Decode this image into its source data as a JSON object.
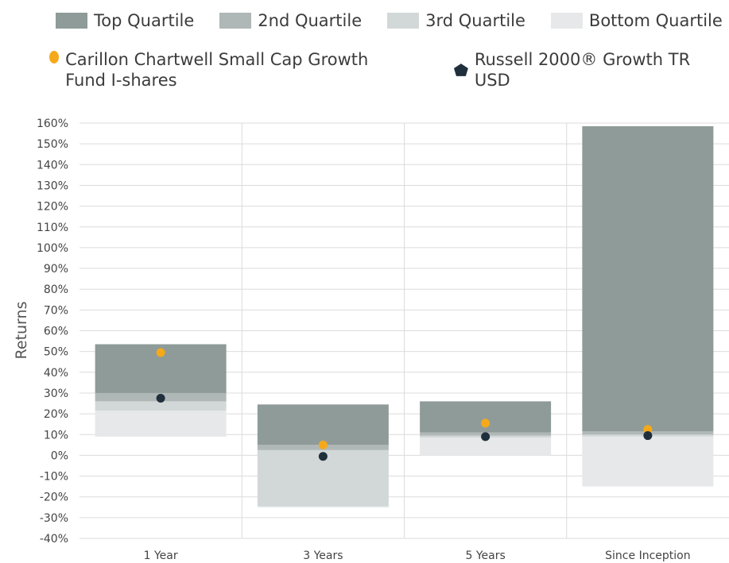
{
  "colors": {
    "top_quartile": "#8e9b98",
    "second_quartile": "#b0b8b7",
    "third_quartile": "#d2d7d7",
    "bottom_quartile": "#e6e8e9",
    "fund": "#f5a91a",
    "index": "#1f2f3c",
    "grid": "#dcdcdc"
  },
  "legend": {
    "quartiles": [
      "Top Quartile",
      "2nd Quartile",
      "3rd Quartile",
      "Bottom Quartile"
    ],
    "fund": "Carillon Chartwell Small Cap Growth Fund  I-shares",
    "index": "Russell 2000® Growth TR USD"
  },
  "chart_data": {
    "type": "floating-bar-with-markers",
    "ylabel": "Returns",
    "ylim": [
      -40,
      160
    ],
    "y_tick_step": 10,
    "y_tick_format": "percent",
    "categories": [
      "1 Year",
      "3 Years",
      "5 Years",
      "Since Inception"
    ],
    "quartile_ranges": [
      {
        "name": "Top Quartile",
        "ranges": [
          [
            30,
            53.5
          ],
          [
            5,
            24.5
          ],
          [
            11,
            26
          ],
          [
            11.5,
            158.5
          ]
        ]
      },
      {
        "name": "2nd Quartile",
        "ranges": [
          [
            26,
            30
          ],
          [
            2.5,
            5
          ],
          [
            9.5,
            11
          ],
          [
            10,
            11.5
          ]
        ]
      },
      {
        "name": "3rd Quartile",
        "ranges": [
          [
            21.5,
            26
          ],
          [
            -24.5,
            2.5
          ],
          [
            8.5,
            9.5
          ],
          [
            9,
            10
          ]
        ]
      },
      {
        "name": "Bottom Quartile",
        "ranges": [
          [
            9,
            21.5
          ],
          [
            -24.5,
            -24.5
          ],
          [
            0,
            8.5
          ],
          [
            -15,
            9
          ]
        ]
      }
    ],
    "series": [
      {
        "name": "Carillon Chartwell Small Cap Growth Fund  I-shares",
        "marker": "circle",
        "values": [
          49.5,
          5,
          15.5,
          12.5
        ]
      },
      {
        "name": "Russell 2000® Growth TR USD",
        "marker": "circle",
        "values": [
          27.5,
          -0.5,
          9,
          9.5
        ]
      }
    ]
  }
}
